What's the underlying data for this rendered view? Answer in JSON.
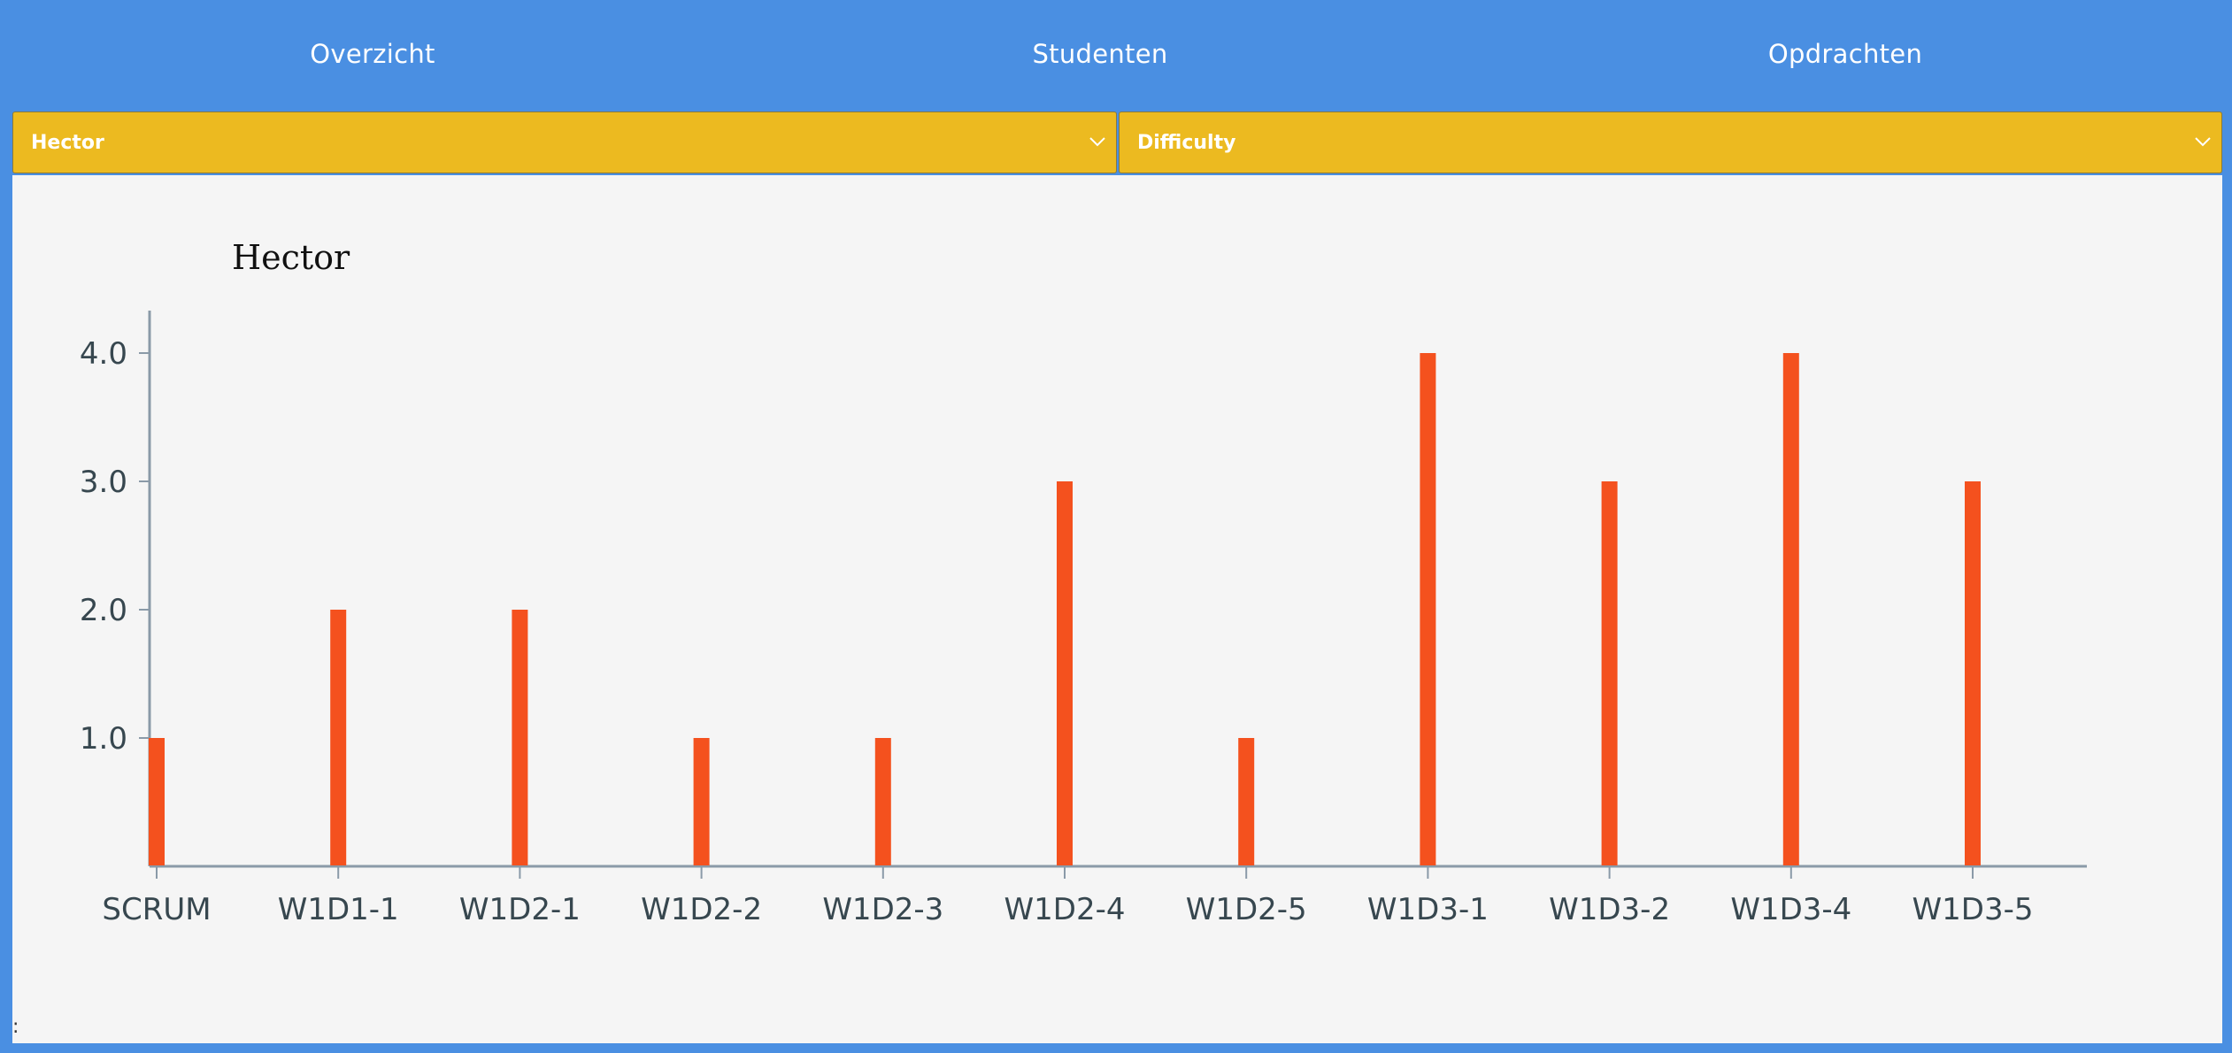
{
  "nav": {
    "items": [
      {
        "label": "Overzicht"
      },
      {
        "label": "Studenten"
      },
      {
        "label": "Opdrachten"
      }
    ]
  },
  "filters": {
    "student": {
      "value": "Hector"
    },
    "metric": {
      "value": "Difficulty"
    }
  },
  "chart_data": {
    "type": "bar",
    "title": "Hector",
    "categories": [
      "SCRUM",
      "W1D1-1",
      "W1D2-1",
      "W1D2-2",
      "W1D2-3",
      "W1D2-4",
      "W1D2-5",
      "W1D3-1",
      "W1D3-2",
      "W1D3-4",
      "W1D3-5"
    ],
    "values": [
      1,
      2,
      2,
      1,
      1,
      3,
      1,
      4,
      3,
      4,
      3
    ],
    "yticks": [
      "1.0",
      "2.0",
      "3.0",
      "4.0"
    ],
    "ylim": [
      0,
      4.33
    ],
    "grid": false,
    "colors": {
      "bar": "#f4511e",
      "axis": "#8a9aa8",
      "tick_text": "#37474f"
    }
  },
  "misc": {
    "corner_mark": ":"
  }
}
